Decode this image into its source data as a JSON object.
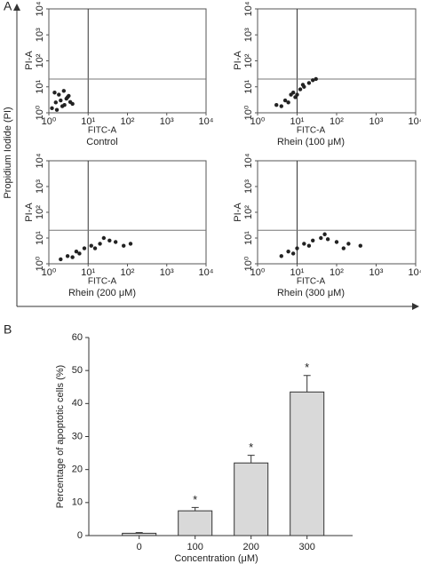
{
  "figure": {
    "panel_a": "A",
    "panel_b": "B",
    "shared_ylabel": "Propidium Iodide (PI)"
  },
  "chart_data": [
    {
      "type": "scatter",
      "caption": "Control",
      "xlabel": "FITC-A",
      "ylabel": "PI-A",
      "log_x": true,
      "log_y": true,
      "color": "#222222",
      "x": [
        1.2,
        1.5,
        2,
        2.5,
        3,
        1.8,
        2.2,
        3.5,
        1.4,
        2.8,
        4,
        1.6,
        2.4,
        3.2
      ],
      "y": [
        1.5,
        2.5,
        3,
        2,
        4,
        5,
        1.8,
        2.6,
        6,
        3.5,
        2.2,
        1.3,
        7,
        4.5
      ],
      "gates": {
        "x": 10,
        "y": 20
      },
      "xlim": [
        1,
        10000
      ],
      "ylim": [
        1,
        10000
      ],
      "xticks": [
        {
          "value": 1,
          "label": "10⁰"
        },
        {
          "value": 10,
          "label": "10¹"
        },
        {
          "value": 100,
          "label": "10²"
        },
        {
          "value": 1000,
          "label": "10³"
        },
        {
          "value": 10000,
          "label": "10⁴"
        }
      ],
      "yticks": [
        {
          "value": 1,
          "label": "10⁰"
        },
        {
          "value": 10,
          "label": "10¹"
        },
        {
          "value": 100,
          "label": "10²"
        },
        {
          "value": 1000,
          "label": "10³"
        },
        {
          "value": 10000,
          "label": "10⁴"
        }
      ]
    },
    {
      "type": "scatter",
      "caption": "Rhein (100 μM)",
      "xlabel": "FITC-A",
      "ylabel": "PI-A",
      "log_x": true,
      "log_y": true,
      "color": "#222222",
      "x": [
        3,
        5,
        7,
        9,
        12,
        15,
        20,
        6,
        8,
        10,
        25,
        4,
        14,
        30
      ],
      "y": [
        2,
        3,
        5,
        4,
        8,
        10,
        14,
        2.5,
        6,
        5,
        18,
        1.8,
        12,
        20
      ],
      "gates": {
        "x": 10,
        "y": 20
      },
      "xlim": [
        1,
        10000
      ],
      "ylim": [
        1,
        10000
      ],
      "xticks": [
        {
          "value": 1,
          "label": "10⁰"
        },
        {
          "value": 10,
          "label": "10¹"
        },
        {
          "value": 100,
          "label": "10²"
        },
        {
          "value": 1000,
          "label": "10³"
        },
        {
          "value": 10000,
          "label": "10⁴"
        }
      ],
      "yticks": [
        {
          "value": 1,
          "label": "10⁰"
        },
        {
          "value": 10,
          "label": "10¹"
        },
        {
          "value": 100,
          "label": "10²"
        },
        {
          "value": 1000,
          "label": "10³"
        },
        {
          "value": 10000,
          "label": "10⁴"
        }
      ]
    },
    {
      "type": "scatter",
      "caption": "Rhein (200 μM)",
      "xlabel": "FITC-A",
      "ylabel": "PI-A",
      "log_x": true,
      "log_y": true,
      "color": "#222222",
      "x": [
        2,
        3,
        5,
        8,
        12,
        20,
        35,
        50,
        80,
        6,
        15,
        25,
        4,
        120
      ],
      "y": [
        1.5,
        2,
        3,
        4,
        5,
        6,
        8,
        7,
        5,
        2.5,
        4,
        10,
        1.8,
        6
      ],
      "gates": {
        "x": 10,
        "y": 20
      },
      "xlim": [
        1,
        10000
      ],
      "ylim": [
        1,
        10000
      ],
      "xticks": [
        {
          "value": 1,
          "label": "10⁰"
        },
        {
          "value": 10,
          "label": "10¹"
        },
        {
          "value": 100,
          "label": "10²"
        },
        {
          "value": 1000,
          "label": "10³"
        },
        {
          "value": 10000,
          "label": "10⁴"
        }
      ],
      "yticks": [
        {
          "value": 1,
          "label": "10⁰"
        },
        {
          "value": 10,
          "label": "10¹"
        },
        {
          "value": 100,
          "label": "10²"
        },
        {
          "value": 1000,
          "label": "10³"
        },
        {
          "value": 10000,
          "label": "10⁴"
        }
      ]
    },
    {
      "type": "scatter",
      "caption": "Rhein (300 μM)",
      "xlabel": "FITC-A",
      "ylabel": "PI-A",
      "log_x": true,
      "log_y": true,
      "color": "#222222",
      "x": [
        4,
        6,
        10,
        15,
        25,
        40,
        60,
        100,
        200,
        400,
        8,
        20,
        50,
        150
      ],
      "y": [
        2,
        3,
        4,
        6,
        8,
        10,
        9,
        7,
        6,
        5,
        2.5,
        5,
        14,
        4
      ],
      "gates": {
        "x": 10,
        "y": 20
      },
      "xlim": [
        1,
        10000
      ],
      "ylim": [
        1,
        10000
      ],
      "xticks": [
        {
          "value": 1,
          "label": "10⁰"
        },
        {
          "value": 10,
          "label": "10¹"
        },
        {
          "value": 100,
          "label": "10²"
        },
        {
          "value": 1000,
          "label": "10³"
        },
        {
          "value": 10000,
          "label": "10⁴"
        }
      ],
      "yticks": [
        {
          "value": 1,
          "label": "10⁰"
        },
        {
          "value": 10,
          "label": "10¹"
        },
        {
          "value": 100,
          "label": "10²"
        },
        {
          "value": 1000,
          "label": "10³"
        },
        {
          "value": 10000,
          "label": "10⁴"
        }
      ]
    },
    {
      "type": "bar",
      "xlabel": "Concentration (μM)",
      "ylabel": "Percentage of apoptotic cells (%)",
      "color": "#d9d9d9",
      "categories": [
        "0",
        "100",
        "200",
        "300"
      ],
      "values": [
        0.7,
        7.5,
        22,
        43.5
      ],
      "errors": [
        0.2,
        1,
        2.3,
        5
      ],
      "annotations": [
        null,
        "*",
        "*",
        "*"
      ],
      "ylim": [
        0,
        60
      ],
      "yticks": [
        0,
        10,
        20,
        30,
        40,
        50,
        60
      ]
    }
  ]
}
